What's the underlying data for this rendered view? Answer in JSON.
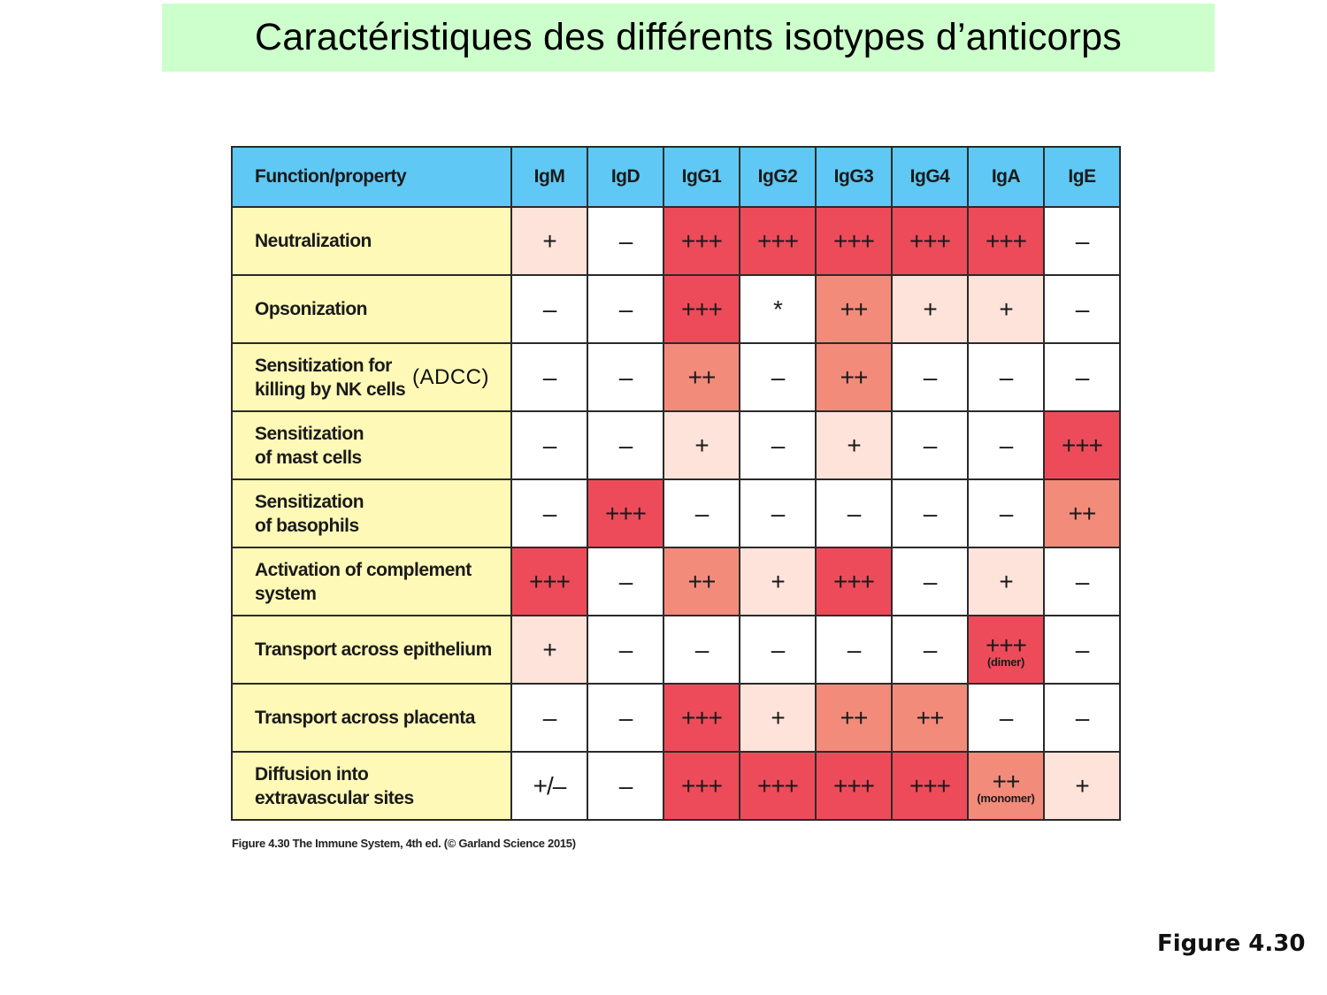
{
  "slide": {
    "title": "Caractéristiques des différents isotypes d’anticorps",
    "figure_label": "Figure 4.30",
    "caption": "Figure 4.30  The Immune System, 4th ed. (© Garland Science 2015)",
    "annotation": "(ADCC)"
  },
  "colors": {
    "title_bg": "#ccffcc",
    "header_bg": "#5fc8f5",
    "label_bg": "#fff9b8",
    "level_0": "#ffffff",
    "level_1": "#fde3d9",
    "level_2": "#f38b7b",
    "level_3": "#ee4b5a"
  },
  "table": {
    "header": [
      "Function/property",
      "IgM",
      "IgD",
      "IgG1",
      "IgG2",
      "IgG3",
      "IgG4",
      "IgA",
      "IgE"
    ],
    "rows": [
      {
        "label": [
          "Neutralization"
        ],
        "cells": [
          {
            "v": "+",
            "lvl": 1
          },
          {
            "v": "–",
            "lvl": 0
          },
          {
            "v": "+++",
            "lvl": 3
          },
          {
            "v": "+++",
            "lvl": 3
          },
          {
            "v": "+++",
            "lvl": 3
          },
          {
            "v": "+++",
            "lvl": 3
          },
          {
            "v": "+++",
            "lvl": 3
          },
          {
            "v": "–",
            "lvl": 0
          }
        ]
      },
      {
        "label": [
          "Opsonization"
        ],
        "cells": [
          {
            "v": "–",
            "lvl": 0
          },
          {
            "v": "–",
            "lvl": 0
          },
          {
            "v": "+++",
            "lvl": 3
          },
          {
            "v": "*",
            "lvl": 0
          },
          {
            "v": "++",
            "lvl": 2
          },
          {
            "v": "+",
            "lvl": 1
          },
          {
            "v": "+",
            "lvl": 1
          },
          {
            "v": "–",
            "lvl": 0
          }
        ]
      },
      {
        "label": [
          "Sensitization for",
          "killing by NK cells"
        ],
        "cells": [
          {
            "v": "–",
            "lvl": 0
          },
          {
            "v": "–",
            "lvl": 0
          },
          {
            "v": "++",
            "lvl": 2
          },
          {
            "v": "–",
            "lvl": 0
          },
          {
            "v": "++",
            "lvl": 2
          },
          {
            "v": "–",
            "lvl": 0
          },
          {
            "v": "–",
            "lvl": 0
          },
          {
            "v": "–",
            "lvl": 0
          }
        ]
      },
      {
        "label": [
          "Sensitization",
          "of mast cells"
        ],
        "cells": [
          {
            "v": "–",
            "lvl": 0
          },
          {
            "v": "–",
            "lvl": 0
          },
          {
            "v": "+",
            "lvl": 1
          },
          {
            "v": "–",
            "lvl": 0
          },
          {
            "v": "+",
            "lvl": 1
          },
          {
            "v": "–",
            "lvl": 0
          },
          {
            "v": "–",
            "lvl": 0
          },
          {
            "v": "+++",
            "lvl": 3
          }
        ]
      },
      {
        "label": [
          "Sensitization",
          "of basophils"
        ],
        "cells": [
          {
            "v": "–",
            "lvl": 0
          },
          {
            "v": "+++",
            "lvl": 3
          },
          {
            "v": "–",
            "lvl": 0
          },
          {
            "v": "–",
            "lvl": 0
          },
          {
            "v": "–",
            "lvl": 0
          },
          {
            "v": "–",
            "lvl": 0
          },
          {
            "v": "–",
            "lvl": 0
          },
          {
            "v": "++",
            "lvl": 2
          }
        ]
      },
      {
        "label": [
          "Activation of complement",
          "system"
        ],
        "cells": [
          {
            "v": "+++",
            "lvl": 3
          },
          {
            "v": "–",
            "lvl": 0
          },
          {
            "v": "++",
            "lvl": 2
          },
          {
            "v": "+",
            "lvl": 1
          },
          {
            "v": "+++",
            "lvl": 3
          },
          {
            "v": "–",
            "lvl": 0
          },
          {
            "v": "+",
            "lvl": 1
          },
          {
            "v": "–",
            "lvl": 0
          }
        ]
      },
      {
        "label": [
          "Transport across epithelium"
        ],
        "cells": [
          {
            "v": "+",
            "lvl": 1
          },
          {
            "v": "–",
            "lvl": 0
          },
          {
            "v": "–",
            "lvl": 0
          },
          {
            "v": "–",
            "lvl": 0
          },
          {
            "v": "–",
            "lvl": 0
          },
          {
            "v": "–",
            "lvl": 0
          },
          {
            "v": "+++",
            "lvl": 3,
            "note": "(dimer)"
          },
          {
            "v": "–",
            "lvl": 0
          }
        ]
      },
      {
        "label": [
          "Transport across placenta"
        ],
        "cells": [
          {
            "v": "–",
            "lvl": 0
          },
          {
            "v": "–",
            "lvl": 0
          },
          {
            "v": "+++",
            "lvl": 3
          },
          {
            "v": "+",
            "lvl": 1
          },
          {
            "v": "++",
            "lvl": 2
          },
          {
            "v": "++",
            "lvl": 2
          },
          {
            "v": "–",
            "lvl": 0
          },
          {
            "v": "–",
            "lvl": 0
          }
        ]
      },
      {
        "label": [
          "Diffusion into",
          "extravascular sites"
        ],
        "cells": [
          {
            "v": "+/–",
            "lvl": 0
          },
          {
            "v": "–",
            "lvl": 0
          },
          {
            "v": "+++",
            "lvl": 3
          },
          {
            "v": "+++",
            "lvl": 3
          },
          {
            "v": "+++",
            "lvl": 3
          },
          {
            "v": "+++",
            "lvl": 3
          },
          {
            "v": "++",
            "lvl": 2,
            "note": "(monomer)"
          },
          {
            "v": "+",
            "lvl": 1
          }
        ]
      }
    ]
  }
}
